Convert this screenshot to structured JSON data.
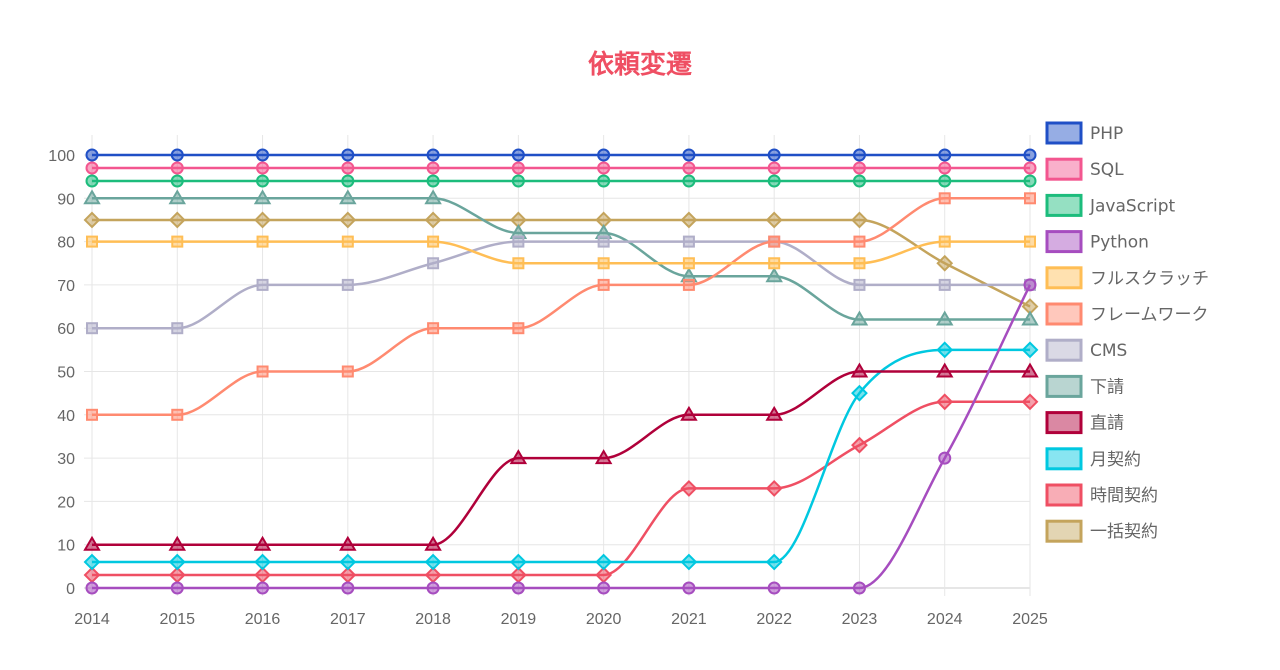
{
  "chart_data": {
    "type": "line",
    "title": "依頼変遷",
    "xlabel": "",
    "ylabel": "",
    "ylim": [
      0,
      100
    ],
    "yticks": [
      0,
      10,
      20,
      30,
      40,
      50,
      60,
      70,
      80,
      90,
      100
    ],
    "grid": true,
    "legend": "right",
    "categories": [
      "2014",
      "2015",
      "2016",
      "2017",
      "2018",
      "2019",
      "2020",
      "2021",
      "2022",
      "2023",
      "2024",
      "2025"
    ],
    "series": [
      {
        "name": "PHP",
        "color": "#1f4fc6",
        "marker": "circle",
        "values": [
          100,
          100,
          100,
          100,
          100,
          100,
          100,
          100,
          100,
          100,
          100,
          100
        ]
      },
      {
        "name": "SQL",
        "color": "#f3568f",
        "marker": "circle",
        "values": [
          97,
          97,
          97,
          97,
          97,
          97,
          97,
          97,
          97,
          97,
          97,
          97
        ]
      },
      {
        "name": "JavaScript",
        "color": "#1cbc7c",
        "marker": "circle",
        "values": [
          94,
          94,
          94,
          94,
          94,
          94,
          94,
          94,
          94,
          94,
          94,
          94
        ]
      },
      {
        "name": "Python",
        "color": "#a64dbf",
        "marker": "circle",
        "values": [
          0,
          0,
          0,
          0,
          0,
          0,
          0,
          0,
          0,
          0,
          30,
          70
        ]
      },
      {
        "name": "フルスクラッチ",
        "color": "#ffbe55",
        "marker": "rect",
        "values": [
          80,
          80,
          80,
          80,
          80,
          75,
          75,
          75,
          75,
          75,
          80,
          80
        ]
      },
      {
        "name": "フレームワーク",
        "color": "#ff8a70",
        "marker": "rect",
        "values": [
          40,
          40,
          50,
          50,
          60,
          60,
          70,
          70,
          80,
          80,
          90,
          90
        ]
      },
      {
        "name": "CMS",
        "color": "#b0aec8",
        "marker": "rect",
        "values": [
          60,
          60,
          70,
          70,
          75,
          80,
          80,
          80,
          80,
          70,
          70,
          70
        ]
      },
      {
        "name": "下請",
        "color": "#6aa59c",
        "marker": "triangle",
        "values": [
          90,
          90,
          90,
          90,
          90,
          82,
          82,
          72,
          72,
          62,
          62,
          62
        ]
      },
      {
        "name": "直請",
        "color": "#b0003a",
        "marker": "triangle",
        "values": [
          10,
          10,
          10,
          10,
          10,
          30,
          30,
          40,
          40,
          50,
          50,
          50
        ]
      },
      {
        "name": "月契約",
        "color": "#00c8e0",
        "marker": "diamond",
        "values": [
          6,
          6,
          6,
          6,
          6,
          6,
          6,
          6,
          6,
          45,
          55,
          55
        ]
      },
      {
        "name": "時間契約",
        "color": "#ef4f63",
        "marker": "diamond",
        "values": [
          3,
          3,
          3,
          3,
          3,
          3,
          3,
          23,
          23,
          33,
          43,
          43
        ]
      },
      {
        "name": "一括契約",
        "color": "#c4a45c",
        "marker": "diamond",
        "values": [
          85,
          85,
          85,
          85,
          85,
          85,
          85,
          85,
          85,
          85,
          75,
          65
        ]
      }
    ]
  }
}
